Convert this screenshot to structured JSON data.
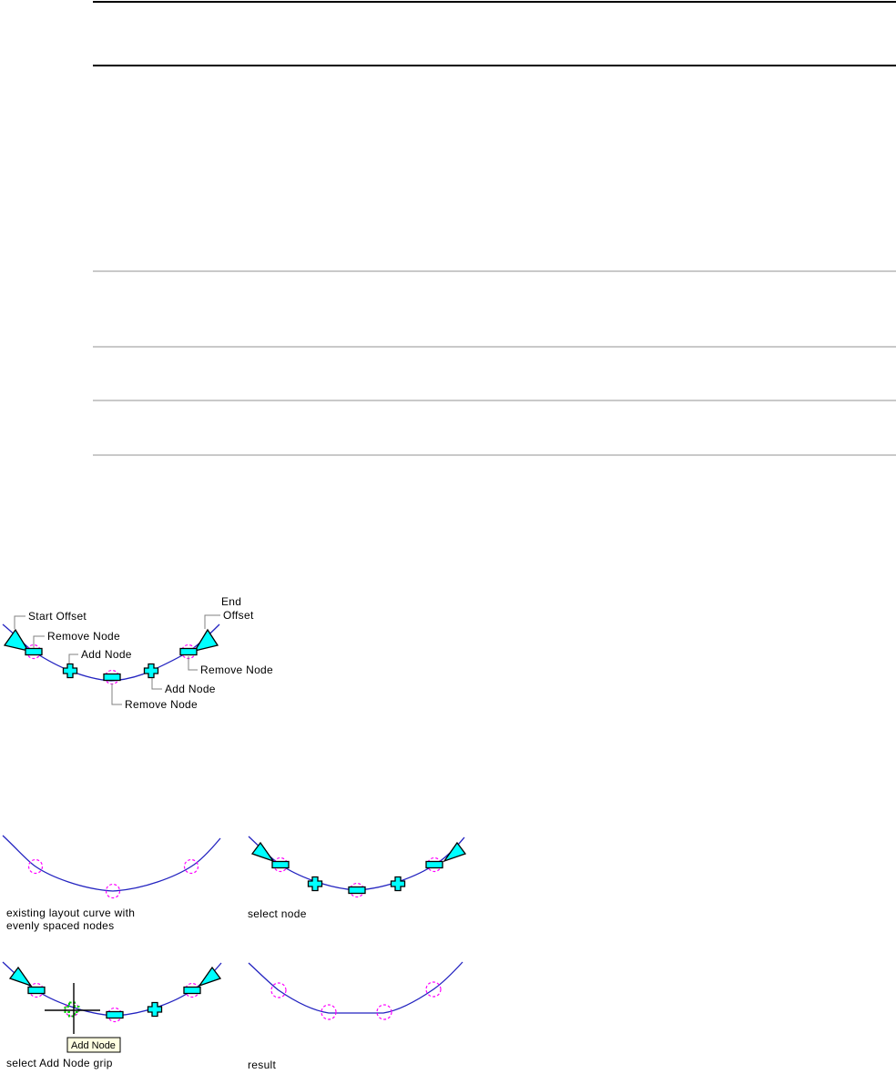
{
  "document": {
    "background": "#FFFFFF"
  },
  "separators": {
    "black_color": "#000000",
    "gray_color": "#C9C9C9"
  },
  "annotated_figure": {
    "labels": {
      "start_offset": "Start Offset",
      "remove_node_left": "Remove Node",
      "add_node_left": "Add Node",
      "remove_node_center": "Remove Node",
      "add_node_right": "Add Node",
      "remove_node_right": "Remove Node",
      "end_offset_line1": "End",
      "end_offset_line2": "Offset"
    }
  },
  "steps": {
    "step1_caption_line1": "existing layout curve with",
    "step1_caption_line2": "evenly spaced nodes",
    "step2_caption": "select node",
    "step3_caption": "select Add Node grip",
    "step3_tooltip": "Add Node",
    "step4_caption": "result"
  },
  "colors": {
    "grip_fill": "#00FFFF",
    "grip_outline": "#000000",
    "curve_blue": "#2323C0",
    "node_marker_magenta": "#FF00FF",
    "selected_grip_green": "#00CC00",
    "leader_gray": "#808080",
    "tooltip_background": "#FFFFE1",
    "text": "#000000"
  }
}
